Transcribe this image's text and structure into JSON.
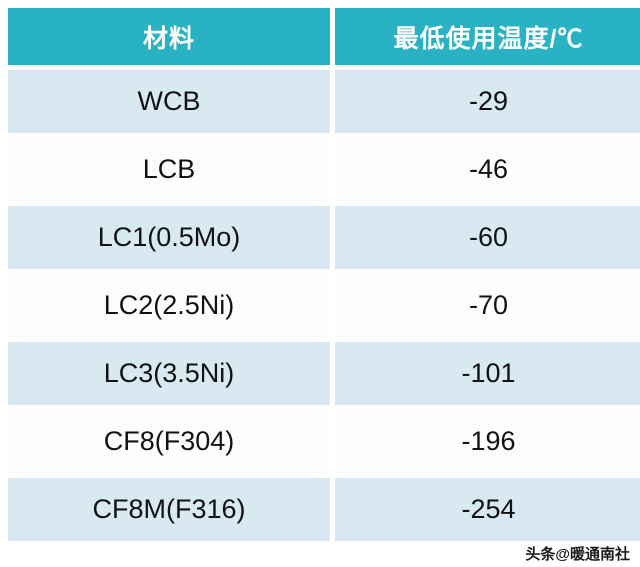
{
  "colors": {
    "header_bg": "#29b2c3",
    "header_text": "#ffffff",
    "row_alt_bg": "#d8e9f2",
    "row_bg": "#ffffff",
    "cell_text": "#121212",
    "gap_border": "#ffffff"
  },
  "table": {
    "headers": {
      "material": "材料",
      "temperature": "最低使用温度/℃"
    },
    "rows": [
      {
        "material": "WCB",
        "temp": "-29"
      },
      {
        "material": "LCB",
        "temp": "-46"
      },
      {
        "material": "LC1(0.5Mo)",
        "temp": "-60"
      },
      {
        "material": "LC2(2.5Ni)",
        "temp": "-70"
      },
      {
        "material": "LC3(3.5Ni)",
        "temp": "-101"
      },
      {
        "material": "CF8(F304)",
        "temp": "-196"
      },
      {
        "material": "CF8M(F316)",
        "temp": "-254"
      }
    ]
  },
  "watermark": "头条@暖通南社",
  "chart_data": {
    "type": "table",
    "title": "",
    "columns": [
      "材料",
      "最低使用温度/℃"
    ],
    "categories": [
      "WCB",
      "LCB",
      "LC1(0.5Mo)",
      "LC2(2.5Ni)",
      "LC3(3.5Ni)",
      "CF8(F304)",
      "CF8M(F316)"
    ],
    "values": [
      -29,
      -46,
      -60,
      -70,
      -101,
      -196,
      -254
    ],
    "value_label": "最低使用温度/℃"
  }
}
